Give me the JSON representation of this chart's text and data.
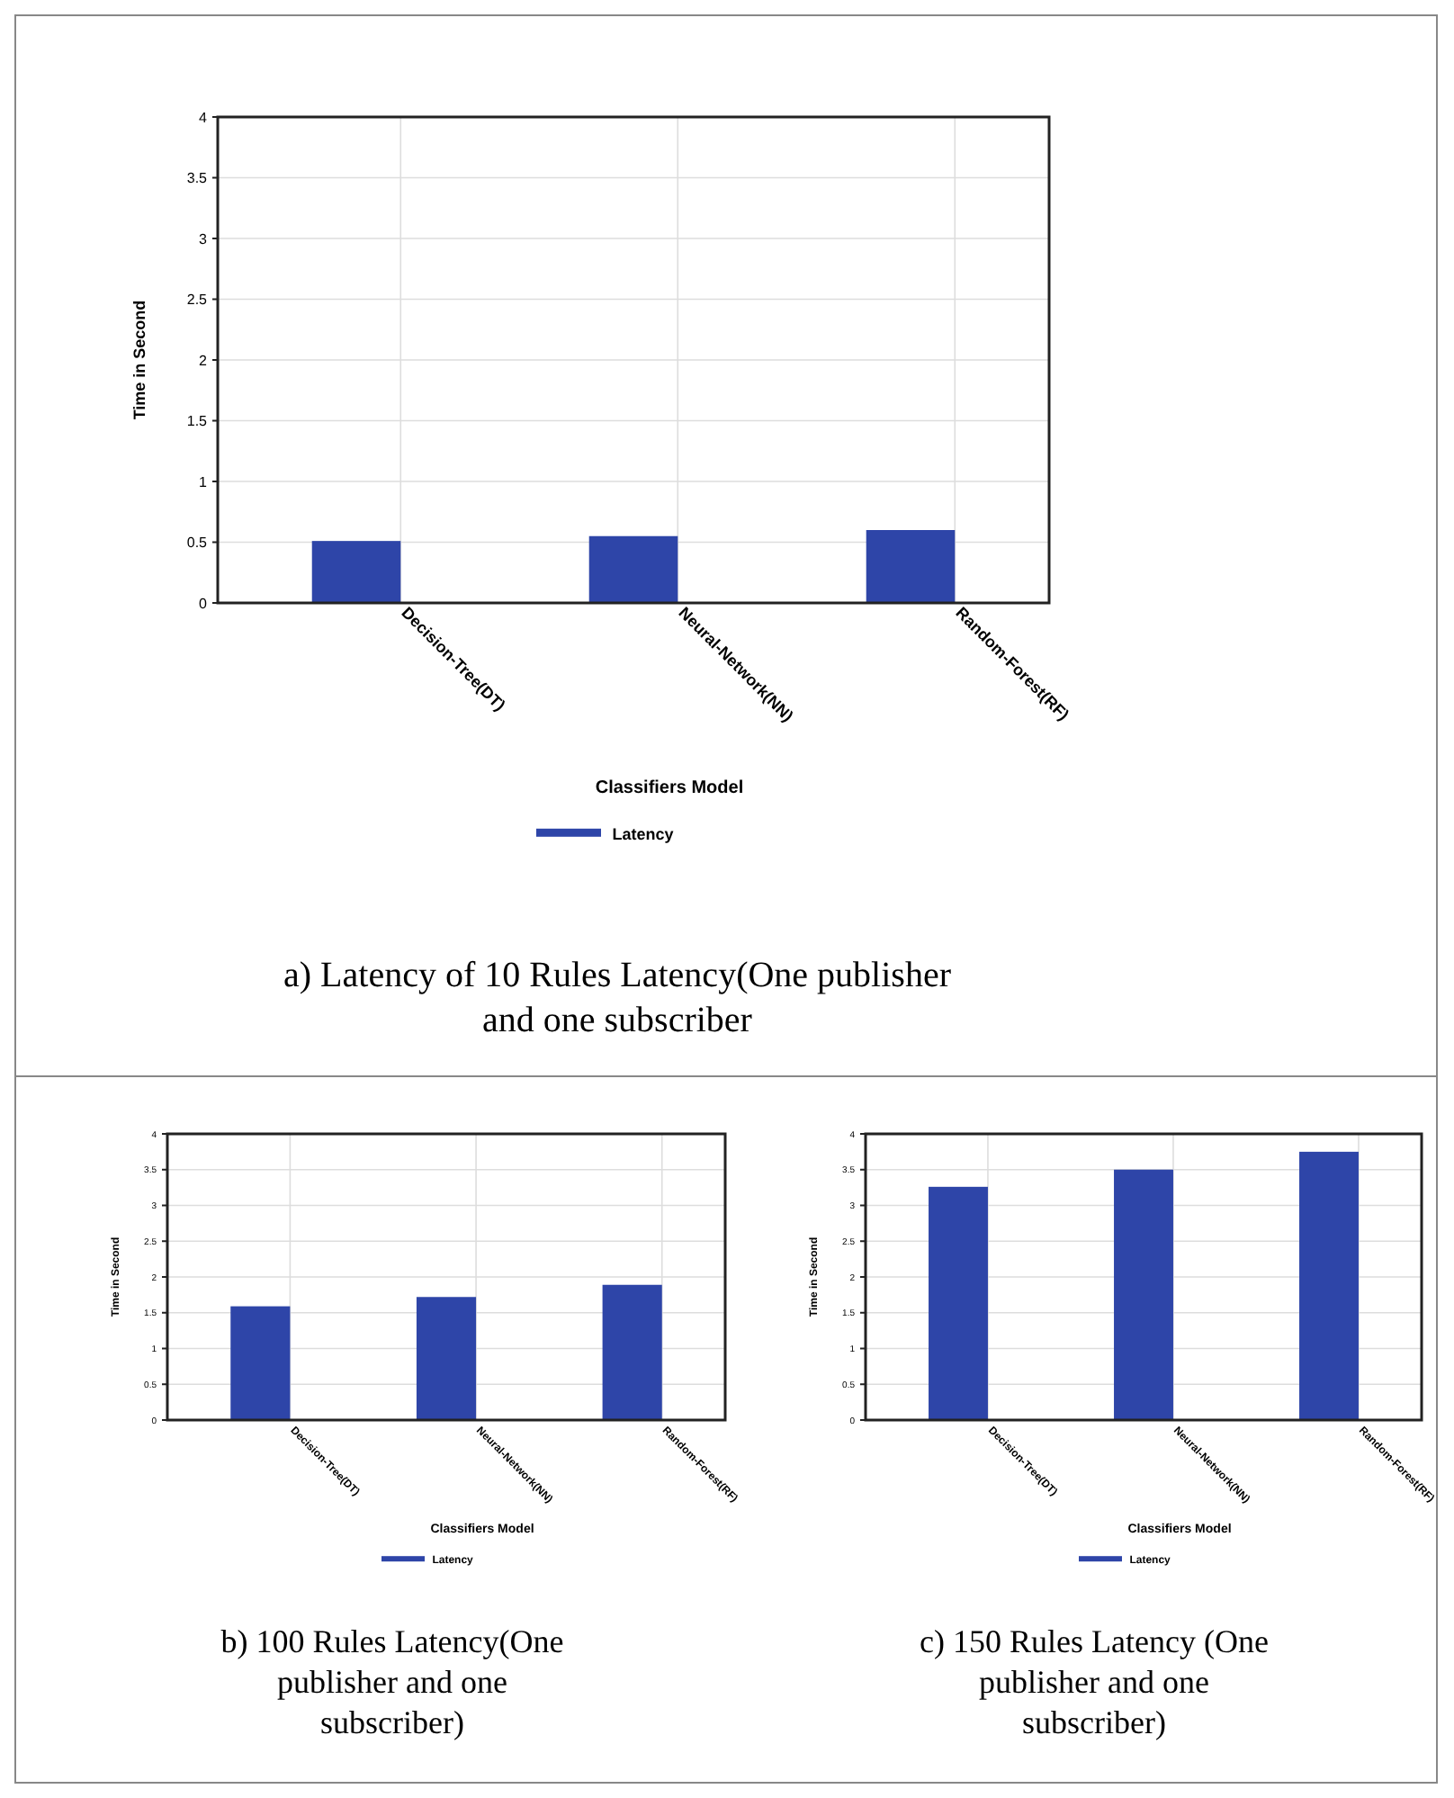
{
  "chart_data": [
    {
      "type": "bar",
      "title": "a) Latency of 10 Rules Latency(One publisher and one subscriber",
      "xlabel": "Classifiers Model",
      "ylabel": "Time in Second",
      "categories": [
        "Decision-Tree(DT)",
        "Neural-Network(NN)",
        "Random-Forest(RF)"
      ],
      "series": [
        {
          "name": "Latency",
          "color": "#2e45a8",
          "values": [
            0.51,
            0.55,
            0.6
          ]
        }
      ],
      "ylim": [
        0,
        4
      ],
      "yticks": [
        0,
        0.5,
        1,
        1.5,
        2,
        2.5,
        3,
        3.5,
        4
      ],
      "grid": true,
      "legend": "bottom"
    },
    {
      "type": "bar",
      "title": "b) 100 Rules Latency(One publisher and one subscriber)",
      "xlabel": "Classifiers Model",
      "ylabel": "Time in Second",
      "categories": [
        "Decision-Tree(DT)",
        "Neural-Network(NN)",
        "Random-Forest(RF)"
      ],
      "series": [
        {
          "name": "Latency",
          "color": "#2e45a8",
          "values": [
            1.59,
            1.72,
            1.89
          ]
        }
      ],
      "ylim": [
        0,
        4
      ],
      "yticks": [
        0,
        0.5,
        1,
        1.5,
        2,
        2.5,
        3,
        3.5,
        4
      ],
      "grid": true,
      "legend": "bottom"
    },
    {
      "type": "bar",
      "title": "c) 150 Rules Latency (One publisher and one subscriber)",
      "xlabel": "Classifiers Model",
      "ylabel": "Time in Second",
      "categories": [
        "Decision-Tree(DT)",
        "Neural-Network(NN)",
        "Random-Forest(RF)"
      ],
      "series": [
        {
          "name": "Latency",
          "color": "#2e45a8",
          "values": [
            3.26,
            3.5,
            3.75
          ]
        }
      ],
      "ylim": [
        0,
        4
      ],
      "yticks": [
        0,
        0.5,
        1,
        1.5,
        2,
        2.5,
        3,
        3.5,
        4
      ],
      "grid": true,
      "legend": "bottom"
    }
  ]
}
